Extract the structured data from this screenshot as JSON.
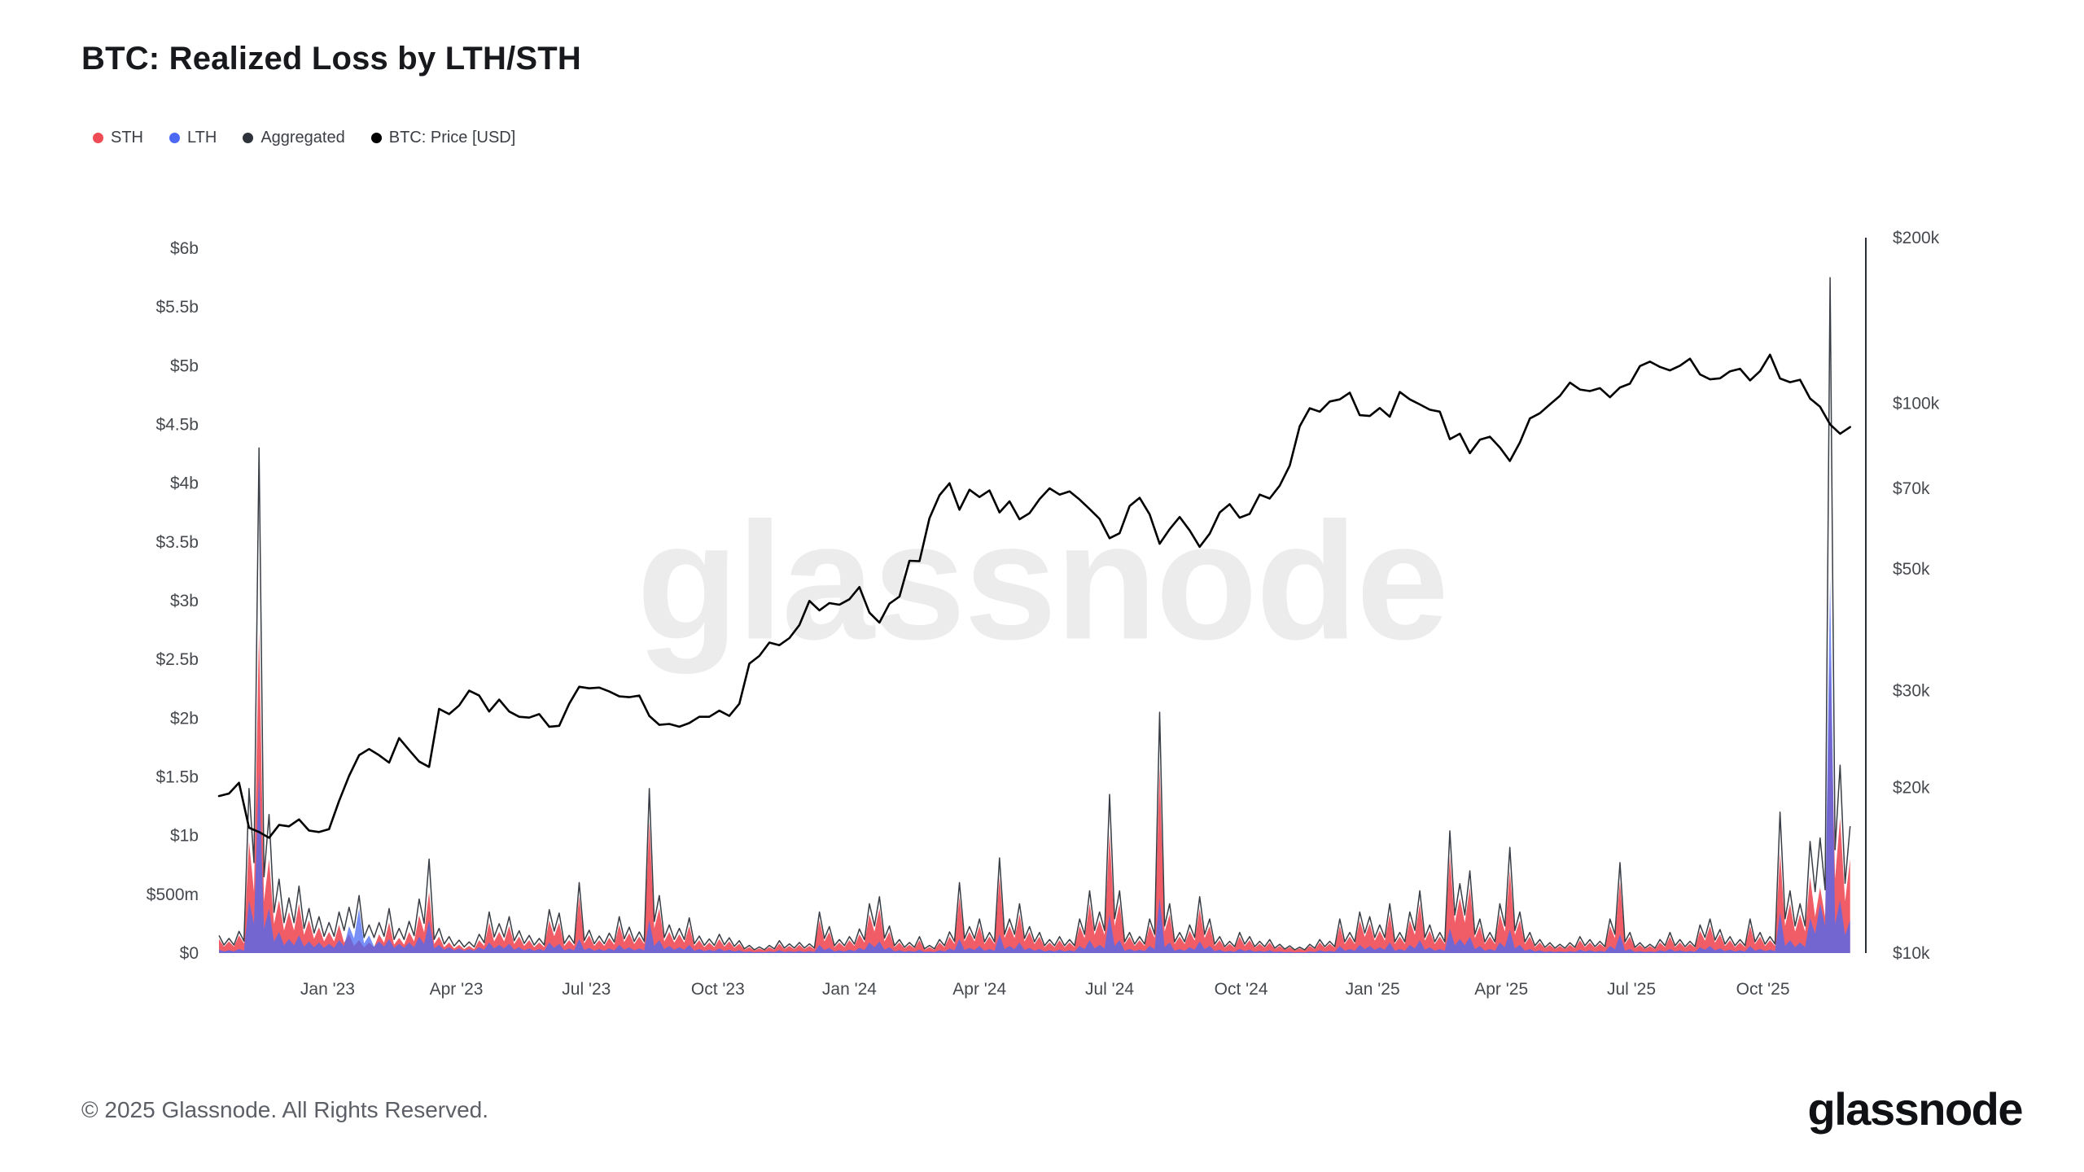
{
  "title": "BTC: Realized Loss by LTH/STH",
  "watermark": "glassnode",
  "legend": {
    "items": [
      {
        "label": "STH",
        "color": "#ee4b55"
      },
      {
        "label": "LTH",
        "color": "#4b69f5"
      },
      {
        "label": "Aggregated",
        "color": "#2e333b"
      },
      {
        "label": "BTC: Price [USD]",
        "color": "#000000"
      }
    ]
  },
  "footer": {
    "copyright": "© 2025 Glassnode. All Rights Reserved.",
    "logo": "glassnode"
  },
  "chart_data": {
    "type": "area+line",
    "title": "BTC: Realized Loss by LTH/STH",
    "grid": "off",
    "x": {
      "start_date": "2022-10-17",
      "step_days": 7,
      "points": 164,
      "total_days": 1152
    },
    "x_ticks": [
      {
        "label": "Jan '23",
        "day": 76
      },
      {
        "label": "Apr '23",
        "day": 166
      },
      {
        "label": "Jul '23",
        "day": 257
      },
      {
        "label": "Oct '23",
        "day": 349
      },
      {
        "label": "Jan '24",
        "day": 441
      },
      {
        "label": "Apr '24",
        "day": 532
      },
      {
        "label": "Jul '24",
        "day": 623
      },
      {
        "label": "Oct '24",
        "day": 715
      },
      {
        "label": "Jan '25",
        "day": 807
      },
      {
        "label": "Apr '25",
        "day": 897
      },
      {
        "label": "Jul '25",
        "day": 988
      },
      {
        "label": "Oct '25",
        "day": 1080
      }
    ],
    "left_axis": {
      "ylim_musd": [
        0,
        6000
      ],
      "tick_labels": [
        {
          "label": "$6b",
          "musd": 6000
        },
        {
          "label": "$5.5b",
          "musd": 5500
        },
        {
          "label": "$5b",
          "musd": 5000
        },
        {
          "label": "$4.5b",
          "musd": 4500
        },
        {
          "label": "$4b",
          "musd": 4000
        },
        {
          "label": "$3.5b",
          "musd": 3500
        },
        {
          "label": "$3b",
          "musd": 3000
        },
        {
          "label": "$2.5b",
          "musd": 2500
        },
        {
          "label": "$2b",
          "musd": 2000
        },
        {
          "label": "$1.5b",
          "musd": 1500
        },
        {
          "label": "$1b",
          "musd": 1000
        },
        {
          "label": "$500m",
          "musd": 500
        },
        {
          "label": "$0",
          "musd": 0
        }
      ]
    },
    "right_axis": {
      "scale": "log",
      "ylim_k": [
        10,
        200
      ],
      "tick_labels": [
        {
          "label": "$200k",
          "k": 200
        },
        {
          "label": "$100k",
          "k": 100
        },
        {
          "label": "$70k",
          "k": 70
        },
        {
          "label": "$50k",
          "k": 50
        },
        {
          "label": "$30k",
          "k": 30
        },
        {
          "label": "$20k",
          "k": 20
        },
        {
          "label": "$10k",
          "k": 10
        }
      ]
    },
    "series": [
      {
        "name": "STH",
        "color": "#ee4b55",
        "render": "area",
        "axis": "left",
        "unit": "million USD",
        "values": [
          120,
          100,
          150,
          950,
          2750,
          800,
          450,
          350,
          420,
          280,
          220,
          180,
          240,
          160,
          110,
          90,
          160,
          260,
          130,
          180,
          320,
          520,
          140,
          90,
          70,
          60,
          110,
          260,
          180,
          230,
          140,
          110,
          90,
          280,
          260,
          110,
          480,
          150,
          110,
          130,
          240,
          170,
          140,
          1120,
          380,
          180,
          160,
          230,
          110,
          90,
          120,
          100,
          80,
          50,
          40,
          50,
          80,
          60,
          70,
          60,
          280,
          180,
          90,
          110,
          160,
          330,
          380,
          180,
          90,
          70,
          110,
          50,
          90,
          140,
          480,
          180,
          230,
          140,
          650,
          230,
          330,
          180,
          140,
          90,
          110,
          90,
          230,
          420,
          280,
          1020,
          420,
          140,
          110,
          230,
          1580,
          330,
          140,
          190,
          380,
          230,
          110,
          80,
          140,
          110,
          80,
          90,
          60,
          50,
          40,
          60,
          90,
          80,
          230,
          140,
          280,
          250,
          190,
          330,
          140,
          280,
          420,
          190,
          140,
          830,
          470,
          560,
          230,
          140,
          330,
          700,
          280,
          140,
          90,
          70,
          60,
          70,
          110,
          90,
          80,
          230,
          610,
          140,
          70,
          60,
          90,
          140,
          90,
          80,
          190,
          230,
          160,
          110,
          90,
          230,
          140,
          110,
          850,
          420,
          330,
          650,
          560,
          2550,
          1150,
          800
        ]
      },
      {
        "name": "LTH",
        "color": "#4b69f5",
        "render": "area",
        "axis": "left",
        "unit": "million USD",
        "values": [
          30,
          25,
          35,
          450,
          1550,
          380,
          180,
          120,
          150,
          100,
          90,
          80,
          110,
          230,
          380,
          150,
          100,
          120,
          80,
          90,
          140,
          280,
          70,
          50,
          40,
          35,
          50,
          90,
          70,
          80,
          50,
          40,
          35,
          90,
          80,
          40,
          120,
          45,
          35,
          40,
          70,
          50,
          40,
          280,
          110,
          60,
          50,
          70,
          35,
          30,
          40,
          30,
          25,
          15,
          12,
          15,
          25,
          18,
          20,
          18,
          70,
          45,
          25,
          30,
          45,
          90,
          100,
          50,
          25,
          20,
          30,
          15,
          25,
          40,
          120,
          45,
          60,
          35,
          160,
          60,
          90,
          45,
          35,
          25,
          30,
          25,
          60,
          110,
          70,
          330,
          110,
          35,
          30,
          60,
          470,
          90,
          35,
          50,
          100,
          60,
          30,
          20,
          35,
          30,
          20,
          25,
          15,
          12,
          10,
          15,
          25,
          20,
          60,
          35,
          70,
          60,
          50,
          90,
          35,
          70,
          110,
          50,
          35,
          210,
          120,
          140,
          60,
          35,
          90,
          200,
          70,
          35,
          25,
          18,
          15,
          18,
          30,
          25,
          20,
          60,
          160,
          35,
          18,
          15,
          25,
          35,
          25,
          20,
          50,
          60,
          40,
          30,
          25,
          60,
          35,
          30,
          350,
          110,
          90,
          300,
          420,
          3200,
          450,
          280
        ]
      },
      {
        "name": "Aggregated",
        "color": "#2e333b",
        "render": "line",
        "axis": "left",
        "derived": "STH + LTH"
      },
      {
        "name": "BTC: Price [USD]",
        "color": "#000000",
        "render": "line",
        "axis": "right",
        "unit": "thousand USD",
        "values": [
          19.3,
          19.5,
          20.4,
          16.9,
          16.6,
          16.2,
          17.1,
          17.0,
          17.5,
          16.7,
          16.6,
          16.8,
          18.9,
          21.0,
          22.9,
          23.5,
          22.9,
          22.2,
          24.6,
          23.4,
          22.3,
          21.8,
          27.8,
          27.2,
          28.2,
          30.0,
          29.4,
          27.5,
          28.9,
          27.5,
          26.9,
          26.8,
          27.2,
          25.8,
          25.9,
          28.4,
          30.5,
          30.3,
          30.4,
          29.9,
          29.3,
          29.2,
          29.4,
          27.0,
          26.0,
          26.1,
          25.8,
          26.2,
          26.9,
          26.9,
          27.6,
          27.0,
          28.4,
          33.6,
          34.7,
          36.7,
          36.3,
          37.4,
          39.5,
          43.7,
          42.0,
          43.3,
          43.0,
          44.0,
          46.3,
          41.6,
          39.9,
          43.2,
          44.5,
          51.7,
          51.6,
          61.8,
          68.0,
          71.5,
          64.0,
          69.6,
          67.5,
          69.4,
          63.3,
          66.3,
          61.5,
          63.1,
          66.9,
          70.0,
          68.2,
          69.1,
          66.8,
          64.2,
          61.6,
          56.8,
          58.0,
          65.0,
          67.3,
          62.8,
          55.5,
          59.0,
          62.1,
          58.7,
          54.8,
          57.9,
          63.3,
          65.5,
          61.9,
          62.9,
          68.2,
          67.1,
          70.8,
          77.0,
          90.8,
          97.9,
          96.5,
          100.7,
          101.6,
          104.5,
          95.1,
          94.8,
          98.0,
          94.5,
          104.8,
          101.6,
          99.5,
          97.3,
          96.5,
          86.0,
          88.0,
          81.1,
          85.8,
          86.9,
          83.1,
          78.5,
          84.8,
          93.8,
          95.9,
          99.5,
          103.1,
          109.0,
          105.9,
          105.2,
          106.5,
          102.5,
          106.8,
          108.5,
          116.8,
          119.0,
          116.4,
          114.7,
          117.0,
          120.5,
          112.8,
          110.5,
          111.0,
          114.3,
          115.5,
          110.0,
          114.4,
          122.5,
          110.9,
          109.2,
          110.3,
          102.0,
          98.5,
          91.5,
          88.0,
          90.5
        ]
      }
    ]
  }
}
